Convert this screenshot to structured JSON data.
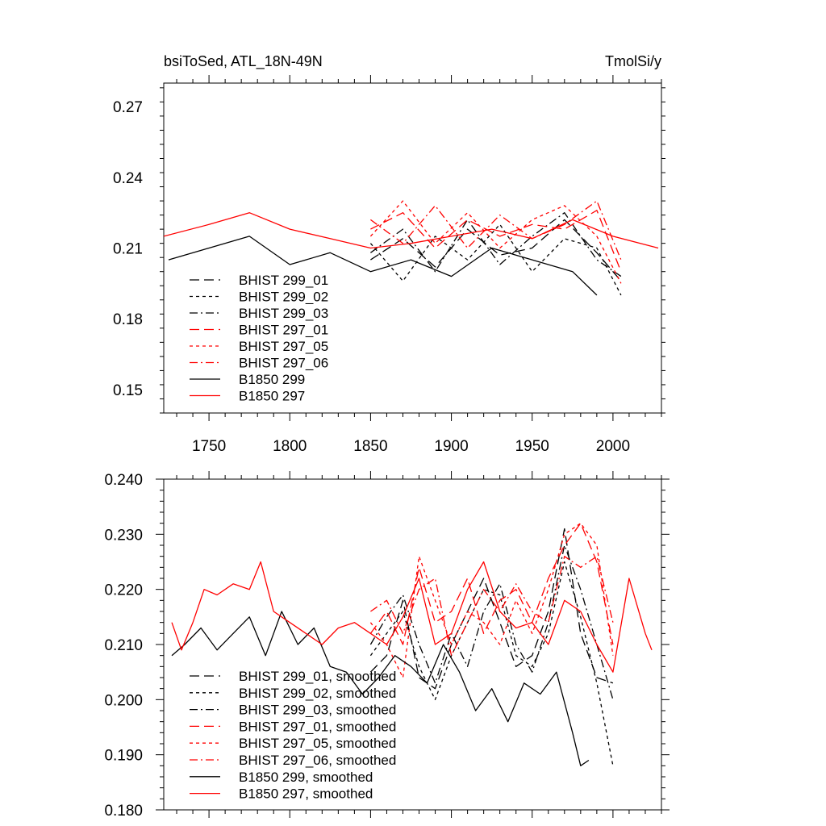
{
  "chart_data": [
    {
      "type": "line",
      "title_left": "bsiToSed, ATL_18N-49N",
      "title_right": "TmolSi/y",
      "xlim": [
        1722,
        2030
      ],
      "ylim": [
        0.14,
        0.28
      ],
      "xticks": [
        1750,
        1800,
        1850,
        1900,
        1950,
        2000
      ],
      "xtick_labels": [
        "1750",
        "1800",
        "1850",
        "1900",
        "1950",
        "2000"
      ],
      "yticks": [
        0.15,
        0.18,
        0.21,
        0.24,
        0.27
      ],
      "ytick_labels": [
        "0.15",
        "0.18",
        "0.21",
        "0.24",
        "0.27"
      ],
      "legend_position": "bottom-left",
      "series": [
        {
          "name": "BHIST 299_01",
          "color": "#000000",
          "dash": "long-dash",
          "x": [
            1850,
            1870,
            1890,
            1910,
            1930,
            1950,
            1970,
            1990,
            2005
          ],
          "y": [
            0.205,
            0.214,
            0.202,
            0.218,
            0.207,
            0.21,
            0.222,
            0.208,
            0.196
          ]
        },
        {
          "name": "BHIST 299_02",
          "color": "#000000",
          "dash": "short-dash",
          "x": [
            1850,
            1870,
            1890,
            1910,
            1930,
            1950,
            1970,
            1990,
            2005
          ],
          "y": [
            0.212,
            0.196,
            0.215,
            0.205,
            0.22,
            0.2,
            0.214,
            0.21,
            0.19
          ]
        },
        {
          "name": "BHIST 299_03",
          "color": "#000000",
          "dash": "dash-dot",
          "x": [
            1850,
            1870,
            1890,
            1910,
            1930,
            1950,
            1970,
            1990,
            2005
          ],
          "y": [
            0.208,
            0.218,
            0.2,
            0.222,
            0.203,
            0.215,
            0.225,
            0.205,
            0.198
          ]
        },
        {
          "name": "BHIST 297_01",
          "color": "#ff0000",
          "dash": "long-dash",
          "x": [
            1850,
            1870,
            1890,
            1910,
            1930,
            1950,
            1970,
            1990,
            2005
          ],
          "y": [
            0.218,
            0.225,
            0.21,
            0.222,
            0.215,
            0.22,
            0.218,
            0.226,
            0.2
          ]
        },
        {
          "name": "BHIST 297_05",
          "color": "#ff0000",
          "dash": "short-dash",
          "x": [
            1850,
            1870,
            1890,
            1910,
            1930,
            1950,
            1970,
            1990,
            2005
          ],
          "y": [
            0.215,
            0.23,
            0.212,
            0.225,
            0.21,
            0.222,
            0.228,
            0.215,
            0.195
          ]
        },
        {
          "name": "BHIST 297_06",
          "color": "#ff0000",
          "dash": "dash-dot",
          "x": [
            1850,
            1870,
            1890,
            1910,
            1930,
            1950,
            1970,
            1990,
            2005
          ],
          "y": [
            0.222,
            0.212,
            0.228,
            0.21,
            0.224,
            0.214,
            0.22,
            0.23,
            0.205
          ]
        },
        {
          "name": "B1850 299",
          "color": "#000000",
          "dash": "solid",
          "x": [
            1725,
            1750,
            1775,
            1800,
            1825,
            1850,
            1875,
            1900,
            1925,
            1950,
            1975,
            1990
          ],
          "y": [
            0.205,
            0.21,
            0.215,
            0.203,
            0.208,
            0.2,
            0.205,
            0.198,
            0.21,
            0.205,
            0.2,
            0.19
          ]
        },
        {
          "name": "B1850 297",
          "color": "#ff0000",
          "dash": "solid",
          "x": [
            1722,
            1750,
            1775,
            1800,
            1825,
            1850,
            1875,
            1900,
            1925,
            1950,
            1975,
            2000,
            2028
          ],
          "y": [
            0.215,
            0.22,
            0.225,
            0.218,
            0.214,
            0.21,
            0.212,
            0.215,
            0.218,
            0.214,
            0.222,
            0.215,
            0.21
          ]
        }
      ]
    },
    {
      "type": "line",
      "xlim": [
        1722,
        2030
      ],
      "ylim": [
        0.18,
        0.24
      ],
      "xticks": [
        1750,
        1800,
        1850,
        1900,
        1950,
        2000
      ],
      "yticks": [
        0.18,
        0.19,
        0.2,
        0.21,
        0.22,
        0.23,
        0.24
      ],
      "ytick_labels": [
        "0.180",
        "0.190",
        "0.200",
        "0.210",
        "0.220",
        "0.230",
        "0.240"
      ],
      "legend_position": "bottom-left",
      "series": [
        {
          "name": "BHIST 299_01, smoothed",
          "color": "#000000",
          "dash": "long-dash",
          "x": [
            1850,
            1860,
            1870,
            1880,
            1890,
            1900,
            1910,
            1920,
            1930,
            1940,
            1950,
            1960,
            1970,
            1980,
            1990,
            2000
          ],
          "y": [
            0.205,
            0.208,
            0.218,
            0.204,
            0.202,
            0.21,
            0.216,
            0.222,
            0.214,
            0.206,
            0.208,
            0.216,
            0.231,
            0.212,
            0.204,
            0.203
          ]
        },
        {
          "name": "BHIST 299_02, smoothed",
          "color": "#000000",
          "dash": "short-dash",
          "x": [
            1850,
            1860,
            1870,
            1880,
            1890,
            1900,
            1910,
            1920,
            1930,
            1940,
            1950,
            1960,
            1970,
            1980,
            1990,
            2000
          ],
          "y": [
            0.208,
            0.212,
            0.216,
            0.206,
            0.2,
            0.208,
            0.214,
            0.22,
            0.219,
            0.208,
            0.206,
            0.212,
            0.225,
            0.215,
            0.203,
            0.188
          ]
        },
        {
          "name": "BHIST 299_03, smoothed",
          "color": "#000000",
          "dash": "dash-dot",
          "x": [
            1850,
            1860,
            1870,
            1880,
            1890,
            1900,
            1910,
            1920,
            1930,
            1940,
            1950,
            1960,
            1970,
            1980,
            1990,
            2000
          ],
          "y": [
            0.21,
            0.215,
            0.219,
            0.21,
            0.203,
            0.212,
            0.206,
            0.216,
            0.221,
            0.21,
            0.205,
            0.214,
            0.228,
            0.22,
            0.21,
            0.2
          ]
        },
        {
          "name": "BHIST 297_01, smoothed",
          "color": "#ff0000",
          "dash": "long-dash",
          "x": [
            1850,
            1860,
            1870,
            1880,
            1890,
            1900,
            1910,
            1920,
            1930,
            1940,
            1950,
            1960,
            1970,
            1980,
            1990,
            2000
          ],
          "y": [
            0.212,
            0.216,
            0.21,
            0.224,
            0.214,
            0.216,
            0.222,
            0.212,
            0.218,
            0.22,
            0.214,
            0.222,
            0.228,
            0.232,
            0.225,
            0.21
          ]
        },
        {
          "name": "BHIST 297_05, smoothed",
          "color": "#ff0000",
          "dash": "short-dash",
          "x": [
            1850,
            1860,
            1870,
            1880,
            1890,
            1900,
            1910,
            1920,
            1930,
            1940,
            1950,
            1960,
            1970,
            1980,
            1990,
            2000
          ],
          "y": [
            0.214,
            0.21,
            0.204,
            0.226,
            0.218,
            0.21,
            0.216,
            0.214,
            0.21,
            0.218,
            0.212,
            0.22,
            0.23,
            0.232,
            0.228,
            0.208
          ]
        },
        {
          "name": "BHIST 297_06, smoothed",
          "color": "#ff0000",
          "dash": "dash-dot",
          "x": [
            1850,
            1860,
            1870,
            1880,
            1890,
            1900,
            1910,
            1920,
            1930,
            1940,
            1950,
            1960,
            1970,
            1980,
            1990,
            2000
          ],
          "y": [
            0.216,
            0.218,
            0.212,
            0.22,
            0.222,
            0.208,
            0.214,
            0.22,
            0.216,
            0.221,
            0.216,
            0.214,
            0.226,
            0.224,
            0.226,
            0.214
          ]
        },
        {
          "name": "B1850 299, smoothed",
          "color": "#000000",
          "dash": "solid",
          "x": [
            1727,
            1735,
            1745,
            1755,
            1765,
            1775,
            1785,
            1795,
            1805,
            1815,
            1825,
            1835,
            1845,
            1855,
            1865,
            1875,
            1885,
            1895,
            1905,
            1915,
            1925,
            1935,
            1945,
            1955,
            1965,
            1975,
            1980,
            1985
          ],
          "y": [
            0.208,
            0.21,
            0.213,
            0.209,
            0.212,
            0.215,
            0.208,
            0.216,
            0.21,
            0.213,
            0.206,
            0.205,
            0.201,
            0.204,
            0.208,
            0.206,
            0.203,
            0.21,
            0.205,
            0.198,
            0.202,
            0.196,
            0.203,
            0.201,
            0.205,
            0.194,
            0.188,
            0.189
          ]
        },
        {
          "name": "B1850 297, smoothed",
          "color": "#ff0000",
          "dash": "solid",
          "x": [
            1727,
            1733,
            1740,
            1747,
            1755,
            1765,
            1775,
            1782,
            1790,
            1800,
            1810,
            1820,
            1830,
            1840,
            1850,
            1860,
            1870,
            1880,
            1890,
            1900,
            1910,
            1920,
            1930,
            1940,
            1950,
            1960,
            1970,
            1980,
            1990,
            2000,
            2010,
            2020,
            2024
          ],
          "y": [
            0.214,
            0.209,
            0.214,
            0.22,
            0.219,
            0.221,
            0.22,
            0.225,
            0.216,
            0.214,
            0.212,
            0.21,
            0.213,
            0.214,
            0.212,
            0.21,
            0.215,
            0.222,
            0.21,
            0.212,
            0.22,
            0.225,
            0.216,
            0.213,
            0.214,
            0.21,
            0.218,
            0.216,
            0.21,
            0.205,
            0.222,
            0.212,
            0.209
          ]
        }
      ]
    }
  ]
}
